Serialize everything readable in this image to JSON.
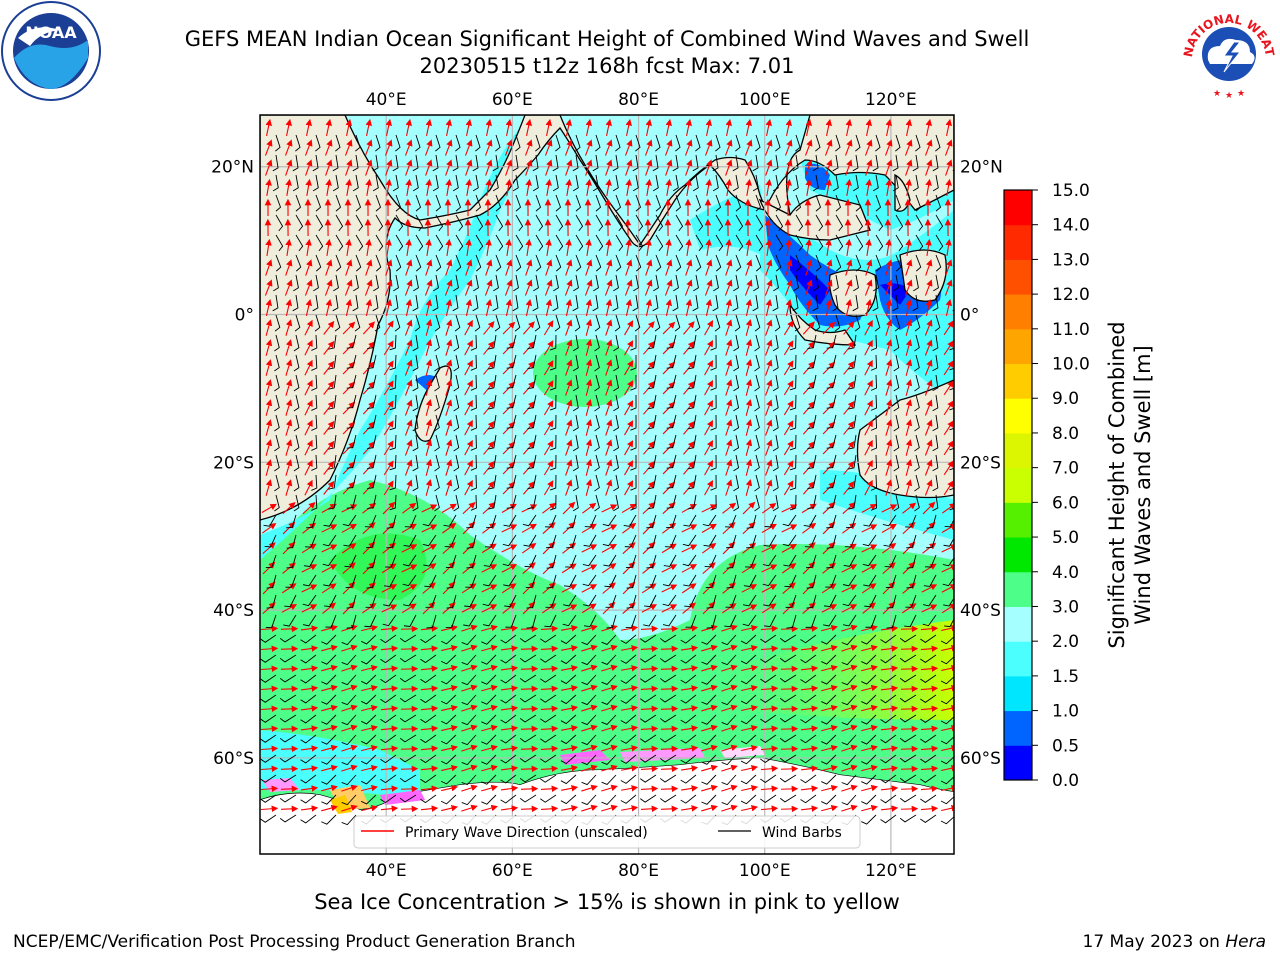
{
  "title": {
    "line1": "GEFS MEAN Indian Ocean Significant Height of Combined Wind Waves and Swell",
    "line2": "20230515 t12z 168h fcst   Max: 7.01"
  },
  "logos": {
    "left": {
      "text": "NOAA",
      "icon": "noaa-logo-icon"
    },
    "right": {
      "text": "NATIONAL WEATHER SERVICE",
      "icon": "nws-logo-icon"
    }
  },
  "map": {
    "lon_range": [
      20,
      130
    ],
    "lat_range": [
      -73,
      27
    ],
    "lon_ticks": [
      {
        "value": 40,
        "label": "40°E"
      },
      {
        "value": 60,
        "label": "60°E"
      },
      {
        "value": 80,
        "label": "80°E"
      },
      {
        "value": 100,
        "label": "100°E"
      },
      {
        "value": 120,
        "label": "120°E"
      }
    ],
    "lat_ticks": [
      {
        "value": 20,
        "label": "20°N"
      },
      {
        "value": 0,
        "label": "0°"
      },
      {
        "value": -20,
        "label": "20°S"
      },
      {
        "value": -40,
        "label": "40°S"
      },
      {
        "value": -60,
        "label": "60°S"
      }
    ],
    "grid": true,
    "colors": {
      "land": "#efeddc",
      "ice": "#ffffff",
      "grid": "#b8b8b8",
      "arrow": "#ff0000",
      "barb": "#000000"
    }
  },
  "colorbar": {
    "title_line1": "Significant Height of Combined",
    "title_line2": "Wind Waves and Swell [m]",
    "range": [
      0,
      15
    ],
    "labels": [
      "0.0",
      "0.5",
      "1.0",
      "1.5",
      "2.0",
      "3.0",
      "4.0",
      "5.0",
      "6.0",
      "7.0",
      "8.0",
      "9.0",
      "10.0",
      "11.0",
      "12.0",
      "13.0",
      "14.0",
      "15.0"
    ],
    "colors": [
      "#0000ff",
      "#0064ff",
      "#00e6ff",
      "#4cffff",
      "#a6ffff",
      "#4dff88",
      "#00e800",
      "#55f000",
      "#c9ff00",
      "#dcf500",
      "#ffff00",
      "#ffcc00",
      "#ffa500",
      "#ff7f00",
      "#ff5000",
      "#ff2a00",
      "#ff0000"
    ]
  },
  "legend": {
    "position": "bottom-center",
    "items": [
      {
        "label": "Primary Wave Direction (unscaled)",
        "color": "#ff0000"
      },
      {
        "label": "Wind Barbs",
        "color": "#000000"
      }
    ]
  },
  "subtitle": "Sea Ice Concentration > 15% is shown in pink to yellow",
  "footer": {
    "left": "NCEP/EMC/Verification Post Processing Product Generation Branch",
    "right_prefix": "17 May 2023 on",
    "right_machine": "Hera"
  }
}
